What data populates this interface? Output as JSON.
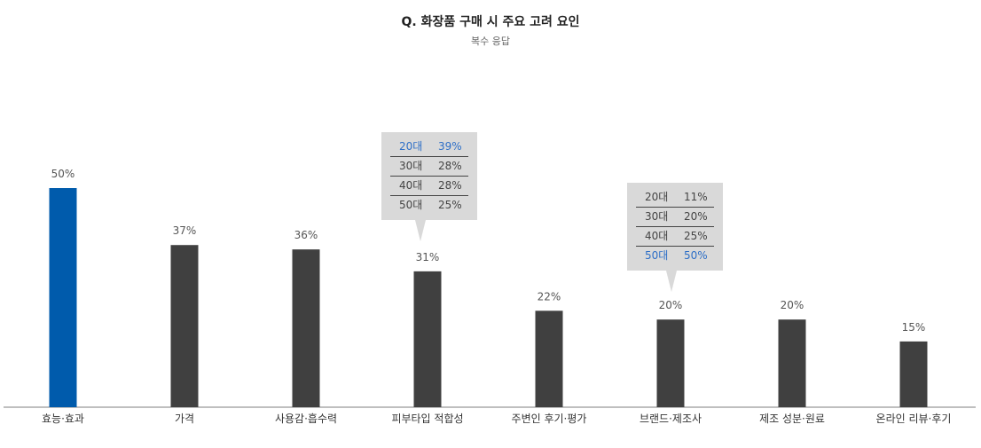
{
  "title": "Q. 화장품 구매 시 주요 고려 요인",
  "subtitle": "복수 응답",
  "colors": {
    "highlight": "#005bac",
    "default": "#404040",
    "tooltip_bg": "#d9d9d9",
    "tooltip_highlight": "#2e6fc7"
  },
  "chart_data": {
    "type": "bar",
    "categories": [
      "효능·효과",
      "가격",
      "사용감·흡수력",
      "피부타입 적합성",
      "주변인 후기·평가",
      "브랜드·제조사",
      "제조 성분·원료",
      "온라인 리뷰·후기"
    ],
    "values": [
      50,
      37,
      36,
      31,
      22,
      20,
      20,
      15
    ],
    "labels": [
      "50%",
      "37%",
      "36%",
      "31%",
      "22%",
      "20%",
      "20%",
      "15%"
    ],
    "highlight_index": 0,
    "ylim": [
      0,
      50
    ]
  },
  "tooltips": [
    {
      "category": "피부타입 적합성",
      "rows": [
        {
          "age": "20대",
          "value": "39%",
          "highlight": true
        },
        {
          "age": "30대",
          "value": "28%",
          "highlight": false
        },
        {
          "age": "40대",
          "value": "28%",
          "highlight": false
        },
        {
          "age": "50대",
          "value": "25%",
          "highlight": false
        }
      ]
    },
    {
      "category": "브랜드·제조사",
      "rows": [
        {
          "age": "20대",
          "value": "11%",
          "highlight": false
        },
        {
          "age": "30대",
          "value": "20%",
          "highlight": false
        },
        {
          "age": "40대",
          "value": "25%",
          "highlight": false
        },
        {
          "age": "50대",
          "value": "50%",
          "highlight": true
        }
      ]
    }
  ]
}
